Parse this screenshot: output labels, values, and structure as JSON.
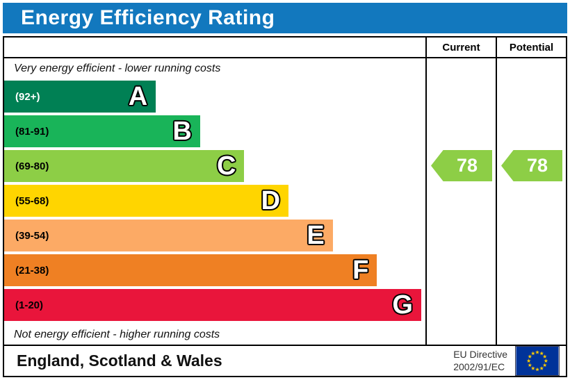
{
  "title": "Energy Efficiency Rating",
  "header": {
    "current": "Current",
    "potential": "Potential"
  },
  "notes": {
    "top": "Very energy efficient - lower running costs",
    "bottom": "Not energy efficient - higher running costs"
  },
  "bands": [
    {
      "letter": "A",
      "range": "(92+)",
      "color": "#008054",
      "range_color": "#ffffff",
      "width_pct": 36
    },
    {
      "letter": "B",
      "range": "(81-91)",
      "color": "#19b459",
      "range_color": "#000000",
      "width_pct": 46.5
    },
    {
      "letter": "C",
      "range": "(69-80)",
      "color": "#8dce46",
      "range_color": "#000000",
      "width_pct": 57
    },
    {
      "letter": "D",
      "range": "(55-68)",
      "color": "#ffd500",
      "range_color": "#000000",
      "width_pct": 67.5
    },
    {
      "letter": "E",
      "range": "(39-54)",
      "color": "#fcaa65",
      "range_color": "#000000",
      "width_pct": 78
    },
    {
      "letter": "F",
      "range": "(21-38)",
      "color": "#ef8023",
      "range_color": "#000000",
      "width_pct": 88.5
    },
    {
      "letter": "G",
      "range": "(1-20)",
      "color": "#e9153b",
      "range_color": "#000000",
      "width_pct": 99
    }
  ],
  "ratings": {
    "current": {
      "value": "78",
      "band": "C",
      "color": "#8dce46"
    },
    "potential": {
      "value": "78",
      "band": "C",
      "color": "#8dce46"
    }
  },
  "footer": {
    "region": "England, Scotland & Wales",
    "directive_line1": "EU Directive",
    "directive_line2": "2002/91/EC",
    "flag_colors": {
      "field": "#003399",
      "stars": "#ffcc00"
    }
  },
  "chart_data": {
    "type": "bar",
    "title": "Energy Efficiency Rating",
    "categories": [
      "A (92+)",
      "B (81-91)",
      "C (69-80)",
      "D (55-68)",
      "E (39-54)",
      "F (21-38)",
      "G (1-20)"
    ],
    "band_colors": [
      "#008054",
      "#19b459",
      "#8dce46",
      "#ffd500",
      "#fcaa65",
      "#ef8023",
      "#e9153b"
    ],
    "series": [
      {
        "name": "Current",
        "value": 78,
        "band": "C"
      },
      {
        "name": "Potential",
        "value": 78,
        "band": "C"
      }
    ],
    "scale_range": [
      1,
      100
    ],
    "annotations": [
      "Very energy efficient - lower running costs",
      "Not energy efficient - higher running costs",
      "England, Scotland & Wales",
      "EU Directive 2002/91/EC"
    ]
  }
}
